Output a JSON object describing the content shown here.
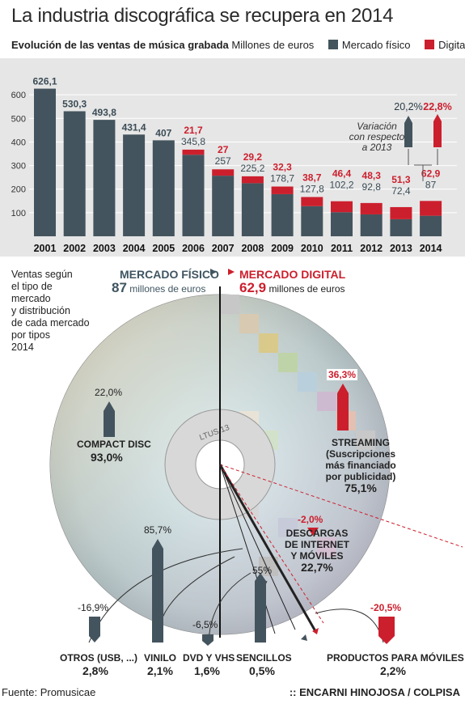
{
  "title": "La industria discográfica se recupera en 2014",
  "subtitle": {
    "bold": "Evolución de las ventas de música grabada",
    "unit": "Millones de euros"
  },
  "legend": {
    "physical": "Mercado físico",
    "digital": "Digital"
  },
  "colors": {
    "physical": "#44545e",
    "digital": "#cc1f2d",
    "panel": "#e6e6e6"
  },
  "chart_data": {
    "type": "bar",
    "stacked": true,
    "title": "Evolución de las ventas de música grabada",
    "ylabel": "Millones de euros",
    "ylim": [
      0,
      650
    ],
    "yticks": [
      100,
      200,
      300,
      400,
      500,
      600
    ],
    "categories": [
      "2001",
      "2002",
      "2003",
      "2004",
      "2005",
      "2006",
      "2007",
      "2008",
      "2009",
      "2010",
      "2011",
      "2012",
      "2013",
      "2014"
    ],
    "series": [
      {
        "name": "Mercado físico",
        "values": [
          626.1,
          530.3,
          493.8,
          431.4,
          407,
          345.8,
          257,
          225.2,
          178.7,
          127.8,
          102.2,
          92.8,
          72.4,
          87
        ],
        "labels": [
          "626,1",
          "530,3",
          "493,8",
          "431,4",
          "407",
          "345,8",
          "257",
          "225,2",
          "178,7",
          "127,8",
          "102,2",
          "92,8",
          "72,4",
          "87"
        ]
      },
      {
        "name": "Digital",
        "values": [
          null,
          null,
          null,
          null,
          null,
          21.7,
          27,
          29.2,
          32.3,
          38.7,
          46.4,
          48.3,
          51.3,
          62.9
        ],
        "labels": [
          "",
          "",
          "",
          "",
          "",
          "21,7",
          "27",
          "29,2",
          "32,3",
          "38,7",
          "46,4",
          "48,3",
          "51,3",
          "62,9"
        ]
      }
    ],
    "variation": {
      "physical": "20,2%",
      "digital": "22,8%",
      "note": [
        "Variación",
        "con respecto",
        "a 2013"
      ]
    }
  },
  "disc": {
    "side_note": [
      "Ventas según",
      "el tipo de",
      "mercado",
      "y distribución",
      "de cada mercado",
      "por tipos"
    ],
    "side_year": "2014",
    "physical_header": "MERCADO FÍSICO",
    "physical_value": "87",
    "digital_header": "MERCADO DIGITAL",
    "digital_value": "62,9",
    "millions": "millones de euros",
    "disc_text": "LTUS 13",
    "items": {
      "cd": {
        "name": "COMPACT DISC",
        "share": "93,0%",
        "change": "22,0%"
      },
      "streaming": {
        "name": "STREAMING",
        "detail": [
          "(Suscripciones",
          "más financiado",
          "por publicidad)"
        ],
        "share": "75,1%",
        "change": "36,3%"
      },
      "downloads": {
        "name": [
          "DESCARGAS",
          "DE INTERNET",
          "Y MÓVILES"
        ],
        "share": "22,7%",
        "change": "-2,0%"
      },
      "mobile": {
        "name": "PRODUCTOS PARA MÓVILES",
        "share": "2,2%",
        "change": "-20,5%"
      },
      "otros": {
        "name": "OTROS (USB, ...)",
        "share": "2,8%",
        "change": "-16,9%"
      },
      "vinilo": {
        "name": "VINILO",
        "share": "2,1%",
        "change": "85,7%"
      },
      "dvd": {
        "name": "DVD Y VHS",
        "share": "1,6%",
        "change": "-6,5%"
      },
      "sencillos": {
        "name": "SENCILLOS",
        "share": "0,5%",
        "change": "55%"
      }
    }
  },
  "footer": {
    "source": "Fuente: Promusicae",
    "credit": ":: ENCARNI HINOJOSA / COLPISA"
  }
}
